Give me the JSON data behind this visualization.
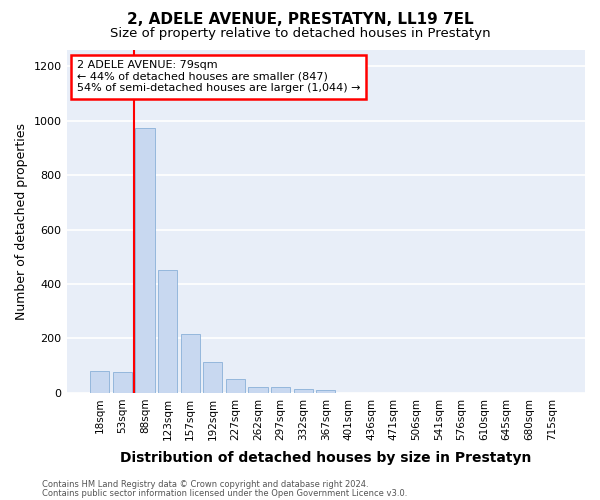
{
  "title": "2, ADELE AVENUE, PRESTATYN, LL19 7EL",
  "subtitle": "Size of property relative to detached houses in Prestatyn",
  "xlabel": "Distribution of detached houses by size in Prestatyn",
  "ylabel": "Number of detached properties",
  "categories": [
    "18sqm",
    "53sqm",
    "88sqm",
    "123sqm",
    "157sqm",
    "192sqm",
    "227sqm",
    "262sqm",
    "297sqm",
    "332sqm",
    "367sqm",
    "401sqm",
    "436sqm",
    "471sqm",
    "506sqm",
    "541sqm",
    "576sqm",
    "610sqm",
    "645sqm",
    "680sqm",
    "715sqm"
  ],
  "values": [
    80,
    75,
    975,
    450,
    215,
    115,
    50,
    20,
    20,
    15,
    10,
    0,
    0,
    0,
    0,
    0,
    0,
    0,
    0,
    0,
    0
  ],
  "bar_color": "#c8d8f0",
  "bar_edgecolor": "#8ab0d8",
  "redline_x": 1.5,
  "annotation_text": "2 ADELE AVENUE: 79sqm\n← 44% of detached houses are smaller (847)\n54% of semi-detached houses are larger (1,044) →",
  "annotation_box_color": "white",
  "annotation_box_edgecolor": "red",
  "ylim": [
    0,
    1260
  ],
  "yticks": [
    0,
    200,
    400,
    600,
    800,
    1000,
    1200
  ],
  "footnote1": "Contains HM Land Registry data © Crown copyright and database right 2024.",
  "footnote2": "Contains public sector information licensed under the Open Government Licence v3.0.",
  "fig_background_color": "white",
  "plot_background_color": "#e8eef8",
  "grid_color": "white",
  "title_fontsize": 11,
  "subtitle_fontsize": 9.5,
  "tick_fontsize": 7.5,
  "ylabel_fontsize": 9,
  "xlabel_fontsize": 10,
  "footnote_fontsize": 6
}
